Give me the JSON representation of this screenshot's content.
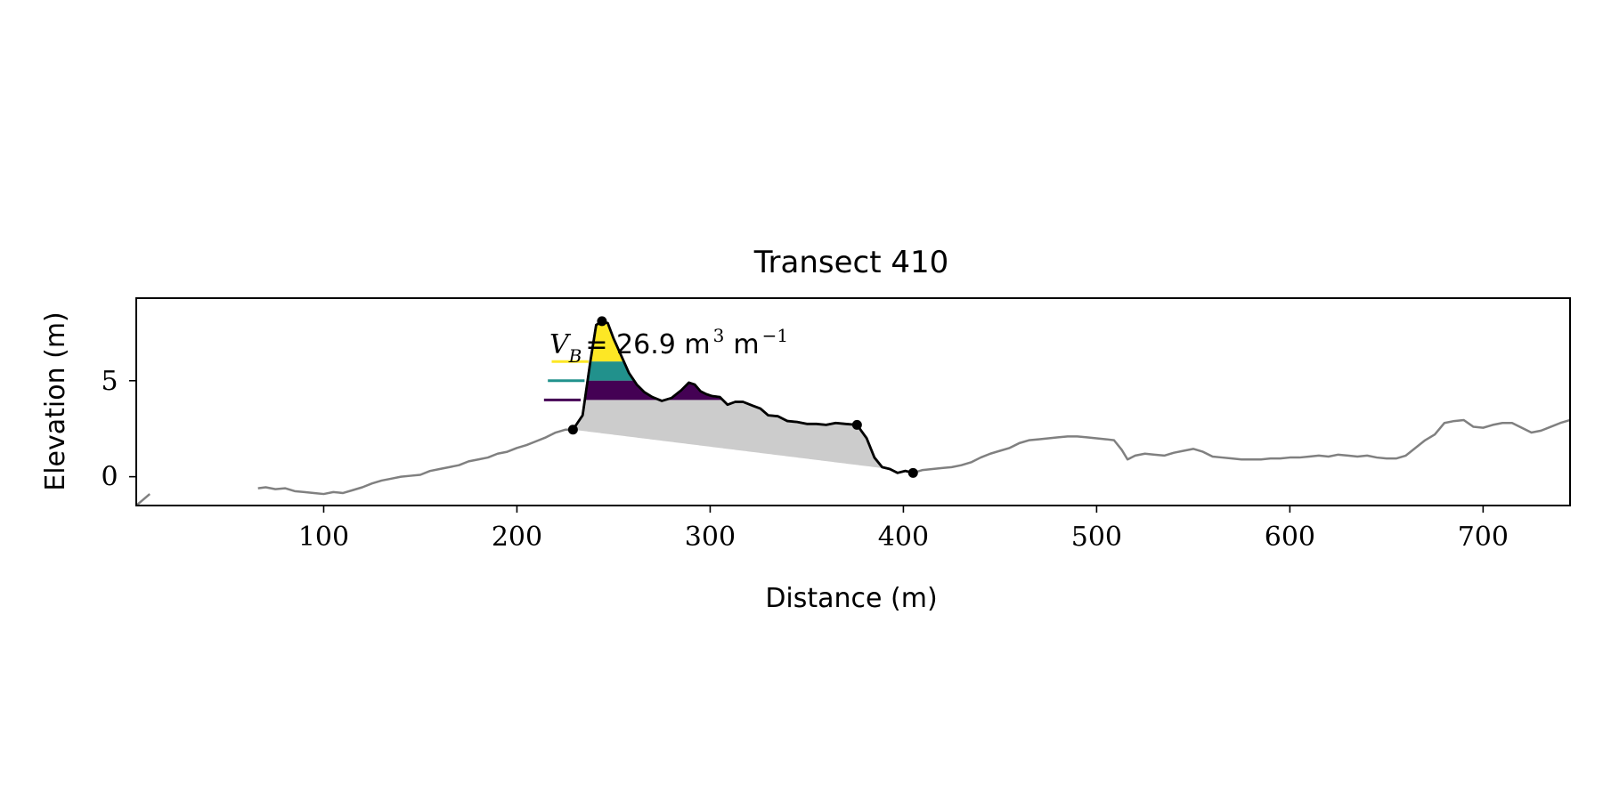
{
  "chart_data": {
    "type": "line",
    "title": "Transect 410",
    "xlabel": "Distance (m)",
    "ylabel": "Elevation (m)",
    "xlim": [
      3,
      745
    ],
    "ylim": [
      -1.5,
      9.3
    ],
    "xticks": [
      100,
      200,
      300,
      400,
      500,
      600,
      700
    ],
    "yticks": [
      0,
      5
    ],
    "grid": false,
    "annotation": {
      "prefix": "V",
      "subscript": "B",
      "value_text": "= 26.9 m",
      "exp1": "3",
      "unit2": "m",
      "exp2": "−1"
    },
    "profile": {
      "color": "#808080",
      "x": [
        66,
        70,
        75,
        80,
        85,
        90,
        95,
        100,
        105,
        110,
        115,
        120,
        125,
        130,
        135,
        140,
        145,
        150,
        155,
        160,
        165,
        170,
        175,
        180,
        185,
        190,
        195,
        200,
        205,
        210,
        215,
        220,
        225,
        229,
        234,
        238,
        241,
        244,
        247,
        250,
        254,
        258,
        262,
        266,
        270,
        275,
        280,
        285,
        289,
        292,
        295,
        298,
        301,
        305,
        309,
        313,
        317,
        322,
        326,
        330,
        335,
        340,
        345,
        350,
        355,
        360,
        365,
        370,
        376,
        381,
        385,
        389,
        393,
        397,
        401,
        405,
        410,
        415,
        420,
        425,
        430,
        435,
        440,
        445,
        450,
        455,
        460,
        465,
        470,
        475,
        480,
        485,
        490,
        495,
        500,
        505,
        509,
        513,
        516,
        520,
        525,
        530,
        535,
        540,
        545,
        550,
        555,
        560,
        565,
        570,
        575,
        580,
        585,
        590,
        595,
        600,
        605,
        610,
        615,
        620,
        625,
        630,
        635,
        640,
        645,
        650,
        655,
        660,
        665,
        670,
        675,
        680,
        685,
        690,
        695,
        700,
        705,
        710,
        715,
        720,
        725,
        730,
        735,
        740,
        745
      ],
      "y": [
        -0.6,
        -0.55,
        -0.65,
        -0.6,
        -0.75,
        -0.8,
        -0.85,
        -0.9,
        -0.8,
        -0.85,
        -0.7,
        -0.55,
        -0.35,
        -0.2,
        -0.1,
        0.0,
        0.05,
        0.1,
        0.3,
        0.4,
        0.5,
        0.6,
        0.8,
        0.9,
        1.0,
        1.2,
        1.3,
        1.5,
        1.65,
        1.85,
        2.05,
        2.3,
        2.45,
        2.45,
        3.2,
        6.0,
        7.9,
        8.1,
        8.0,
        7.2,
        6.3,
        5.4,
        4.8,
        4.4,
        4.15,
        3.95,
        4.1,
        4.5,
        4.9,
        4.8,
        4.45,
        4.3,
        4.2,
        4.15,
        3.75,
        3.9,
        3.9,
        3.7,
        3.55,
        3.2,
        3.15,
        2.9,
        2.85,
        2.75,
        2.75,
        2.7,
        2.8,
        2.75,
        2.7,
        2.0,
        1.0,
        0.5,
        0.4,
        0.2,
        0.3,
        0.2,
        0.35,
        0.4,
        0.45,
        0.5,
        0.6,
        0.75,
        1.0,
        1.2,
        1.35,
        1.5,
        1.75,
        1.9,
        1.95,
        2.0,
        2.05,
        2.1,
        2.1,
        2.05,
        2.0,
        1.95,
        1.9,
        1.4,
        0.9,
        1.1,
        1.2,
        1.15,
        1.1,
        1.25,
        1.35,
        1.45,
        1.3,
        1.05,
        1.0,
        0.95,
        0.9,
        0.9,
        0.9,
        0.95,
        0.95,
        1.0,
        1.0,
        1.05,
        1.1,
        1.05,
        1.15,
        1.1,
        1.05,
        1.1,
        1.0,
        0.95,
        0.95,
        1.1,
        1.5,
        1.9,
        2.2,
        2.8,
        2.9,
        2.95,
        2.6,
        2.55,
        2.7,
        2.8,
        2.8,
        2.55,
        2.3,
        2.4,
        2.6,
        2.8,
        2.95
      ]
    },
    "dune": {
      "color": "#000000",
      "x_start": 229,
      "x_end": 405
    },
    "points": {
      "color": "#000000",
      "x": [
        229,
        244,
        376,
        405
      ],
      "y": [
        2.45,
        8.1,
        2.7,
        0.2
      ]
    },
    "volume_area": {
      "color": "#cccccc",
      "x_start": 229,
      "x_end": 393,
      "base": [
        [
          229,
          2.45
        ],
        [
          393,
          0.4
        ]
      ]
    },
    "bands": [
      {
        "color": "#fde725",
        "y_from": 6.0,
        "y_to": 8.1,
        "marker_x": [
          218,
          237
        ]
      },
      {
        "color": "#21918c",
        "y_from": 5.0,
        "y_to": 6.0,
        "marker_x": [
          216,
          235
        ]
      },
      {
        "color": "#440154",
        "y_from": 4.0,
        "y_to": 5.0,
        "marker_x": [
          214,
          233
        ]
      }
    ],
    "edge_marker": {
      "color": "#808080",
      "x": [
        3,
        10
      ],
      "y": [
        -1.5,
        -0.9
      ]
    }
  }
}
